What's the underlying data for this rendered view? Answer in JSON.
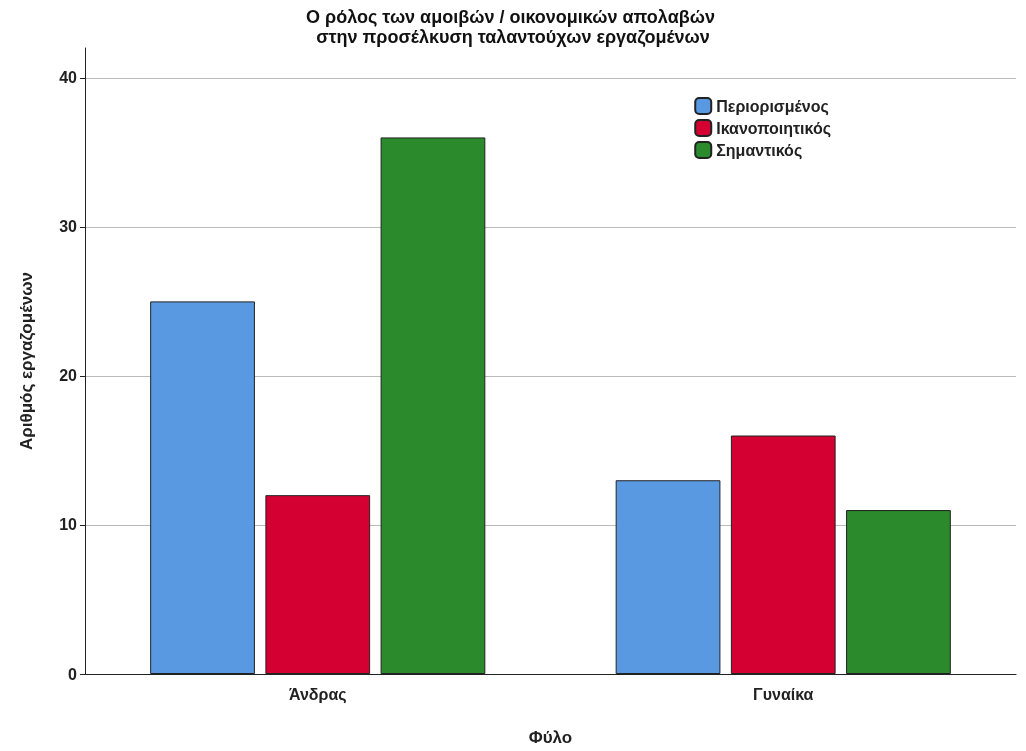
{
  "chart_data": {
    "type": "bar",
    "title": "Ο ρόλος των αμοιβών / οικονομικών απολαβών στην προσέλκυση ταλαντούχων εργαζομένων",
    "xlabel": "Φύλο",
    "ylabel": "Αριθμός εργαζομένων",
    "categories": [
      "Άνδρας",
      "Γυναίκα"
    ],
    "series": [
      {
        "name": "Περιορισμένος",
        "color": "#5899e2",
        "values": [
          25,
          13
        ]
      },
      {
        "name": "Ικανοποιητικός",
        "color": "#d50032",
        "values": [
          12,
          16
        ]
      },
      {
        "name": "Σημαντικός",
        "color": "#2b8a2b",
        "values": [
          36,
          11
        ]
      }
    ],
    "ylim": [
      0,
      42
    ],
    "yticks": [
      0,
      10,
      20,
      30,
      40
    ],
    "grid": "y",
    "legend": "top right"
  }
}
